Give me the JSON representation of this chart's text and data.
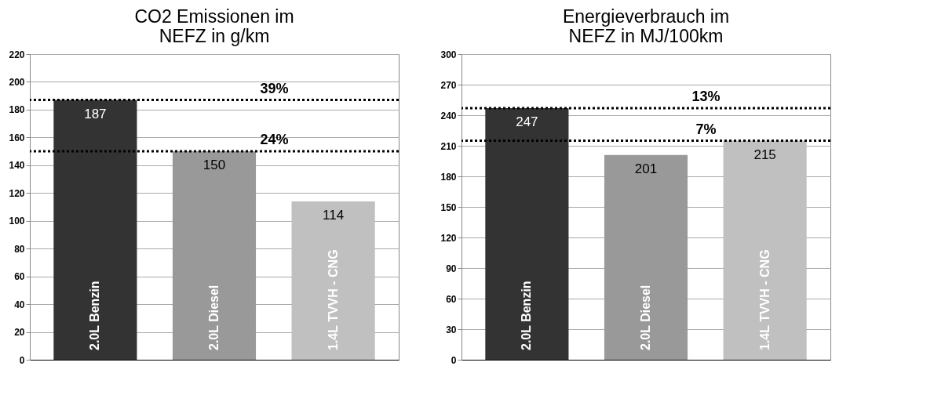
{
  "chart_data": [
    {
      "type": "bar",
      "title": "CO2 Emissionen im\nNEFZ in g/km",
      "categories": [
        "2.0L Benzin",
        "2.0L Diesel",
        "1.4L TVVH - CNG"
      ],
      "values": [
        187,
        150,
        114
      ],
      "colors": [
        "#333333",
        "#999999",
        "#c0c0c0"
      ],
      "ylim": [
        0,
        220
      ],
      "yticks": [
        0,
        20,
        40,
        60,
        80,
        100,
        120,
        140,
        160,
        180,
        200,
        220
      ],
      "grid": "y",
      "tick_labels": "y",
      "data_labels": true,
      "ref_lines": [
        {
          "axis": "y",
          "value": 187,
          "line_style": "dotted",
          "color": "#000000"
        },
        {
          "axis": "y",
          "value": 150,
          "line_style": "dotted",
          "color": "#000000"
        }
      ],
      "annotations": [
        "39%",
        "24%"
      ]
    },
    {
      "type": "bar",
      "title": "Energieverbrauch im\nNEFZ in MJ/100km",
      "categories": [
        "2.0L Benzin",
        "2.0L Diesel",
        "1.4L TVVH - CNG"
      ],
      "values": [
        247,
        201,
        215
      ],
      "colors": [
        "#333333",
        "#999999",
        "#c0c0c0"
      ],
      "ylim": [
        0,
        300
      ],
      "yticks": [
        0,
        30,
        60,
        90,
        120,
        150,
        180,
        210,
        240,
        270,
        300
      ],
      "grid": "y",
      "tick_labels": "y",
      "data_labels": true,
      "ref_lines": [
        {
          "axis": "y",
          "value": 247,
          "line_style": "dotted",
          "color": "#000000"
        },
        {
          "axis": "y",
          "value": 215,
          "line_style": "dotted",
          "color": "#000000"
        }
      ],
      "annotations": [
        "13%",
        "7%"
      ]
    }
  ]
}
